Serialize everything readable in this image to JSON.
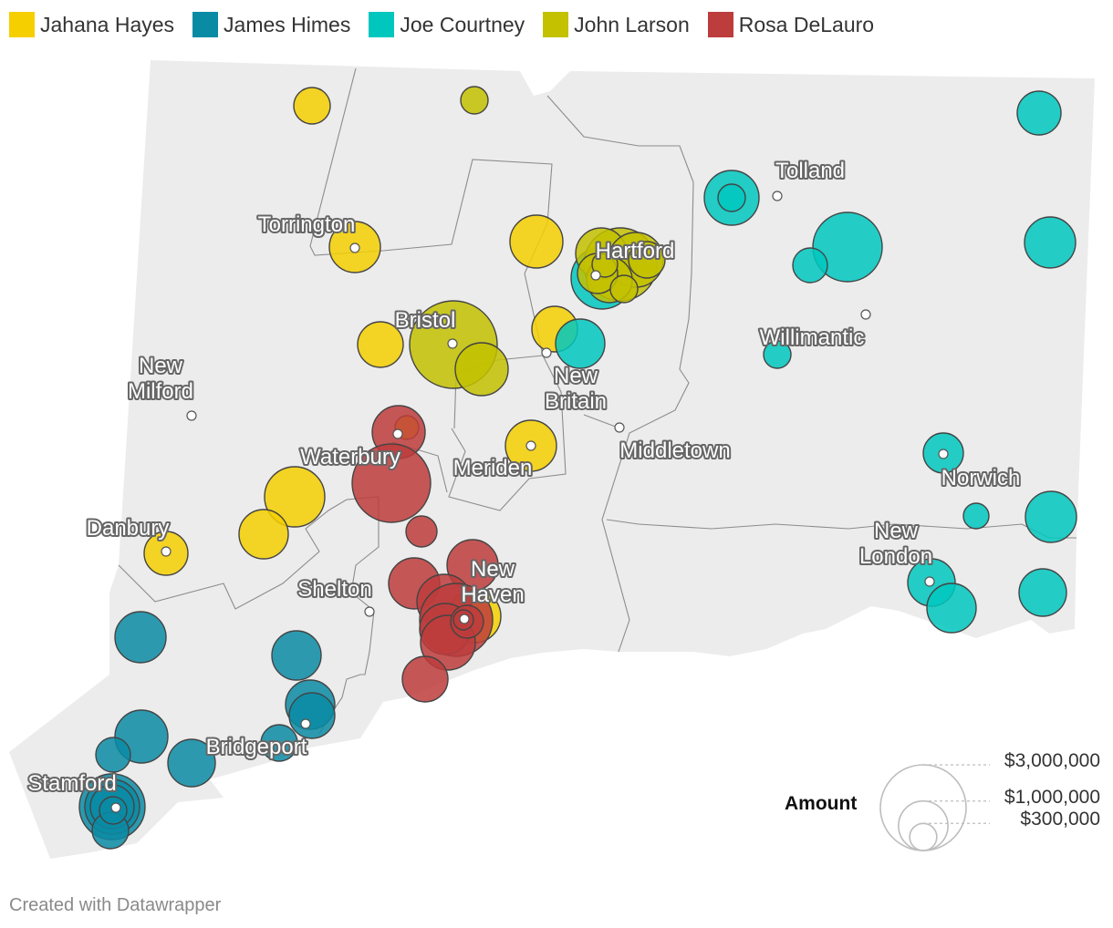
{
  "legend": [
    {
      "name": "Jahana Hayes",
      "color": "#f5cf00"
    },
    {
      "name": "James Himes",
      "color": "#0a8ba4"
    },
    {
      "name": "Joe Courtney",
      "color": "#00c7be"
    },
    {
      "name": "John Larson",
      "color": "#c3c100"
    },
    {
      "name": "Rosa DeLauro",
      "color": "#bd3c3c"
    }
  ],
  "cities": [
    {
      "name": "Tolland",
      "lines": [
        "Tolland"
      ]
    },
    {
      "name": "Torrington",
      "lines": [
        "Torrington"
      ]
    },
    {
      "name": "Hartford",
      "lines": [
        "Hartford"
      ]
    },
    {
      "name": "Willimantic",
      "lines": [
        "Willimantic"
      ]
    },
    {
      "name": "Bristol",
      "lines": [
        "Bristol"
      ]
    },
    {
      "name": "New Milford",
      "lines": [
        "New",
        "Milford"
      ]
    },
    {
      "name": "New Britain",
      "lines": [
        "New",
        "Britain"
      ]
    },
    {
      "name": "Waterbury",
      "lines": [
        "Waterbury"
      ]
    },
    {
      "name": "Meriden",
      "lines": [
        "Meriden"
      ]
    },
    {
      "name": "Middletown",
      "lines": [
        "Middletown"
      ]
    },
    {
      "name": "Norwich",
      "lines": [
        "Norwich"
      ]
    },
    {
      "name": "Danbury",
      "lines": [
        "Danbury"
      ]
    },
    {
      "name": "New London",
      "lines": [
        "New",
        "London"
      ]
    },
    {
      "name": "New Haven",
      "lines": [
        "New",
        "Haven"
      ]
    },
    {
      "name": "Shelton",
      "lines": [
        "Shelton"
      ]
    },
    {
      "name": "Bridgeport",
      "lines": [
        "Bridgeport"
      ]
    },
    {
      "name": "Stamford",
      "lines": [
        "Stamford"
      ]
    }
  ],
  "size_legend": {
    "title": "Amount",
    "levels": [
      {
        "label": "$3,000,000",
        "value": 3000000
      },
      {
        "label": "$1,000,000",
        "value": 1000000
      },
      {
        "label": "$300,000",
        "value": 300000
      }
    ]
  },
  "credit": "Created with Datawrapper"
}
